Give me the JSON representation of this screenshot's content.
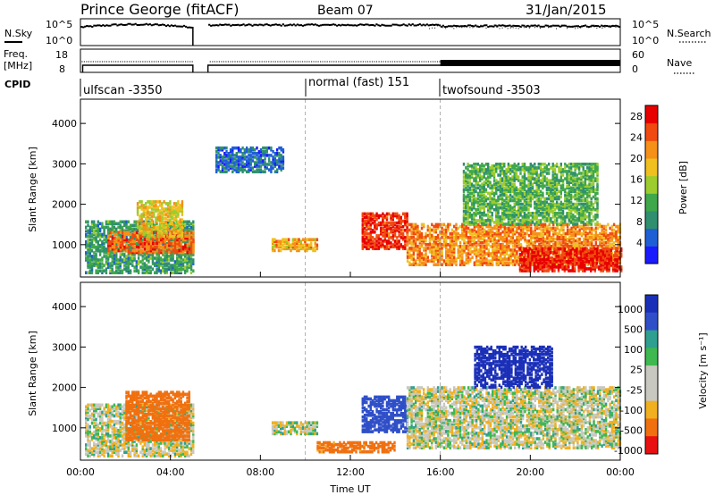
{
  "header": {
    "station": "Prince George (fitACF)",
    "beam": "Beam 07",
    "date": "31/Jan/2015"
  },
  "status_panels": {
    "nsky_label": "N.Sky",
    "nsearch_label": "N.Search",
    "freq_label": "Freq.",
    "mhz_label": "[MHz]",
    "nave_label": "Nave",
    "cpid_label": "CPID",
    "noise_ticks_left": [
      "10^5",
      "10^0"
    ],
    "noise_ticks_right": [
      "10^5",
      "10^0"
    ],
    "freq_ticks_left": [
      "18",
      "8"
    ],
    "nave_ticks_right": [
      "60",
      "0"
    ],
    "cpid_segments": [
      {
        "name": "ulfscan -3350",
        "start_hour": 0,
        "end_hour": 10
      },
      {
        "name": "normal (fast) 151",
        "start_hour": 10,
        "end_hour": 16
      },
      {
        "name": "twofsound -3503",
        "start_hour": 16,
        "end_hour": 24
      }
    ],
    "data_gap": [
      5.0,
      5.67
    ]
  },
  "chart_data": [
    {
      "type": "heatmap",
      "panel": "power",
      "ylabel": "Slant Range [km]",
      "ylim": [
        200,
        4600
      ],
      "yticks": [
        1000,
        2000,
        3000,
        4000
      ],
      "xlim": [
        0,
        24
      ],
      "colorbar": {
        "label": "Power [dB]",
        "ticks": [
          4,
          8,
          12,
          16,
          20,
          24,
          28
        ],
        "range": [
          0,
          30
        ]
      },
      "regions": [
        {
          "t0": 0.2,
          "t1": 5.0,
          "r0": 300,
          "r1": 1600,
          "level": 10
        },
        {
          "t0": 1.2,
          "t1": 5.0,
          "r0": 800,
          "r1": 1300,
          "level": 24
        },
        {
          "t0": 2.5,
          "t1": 4.5,
          "r0": 1200,
          "r1": 2100,
          "level": 18
        },
        {
          "t0": 8.5,
          "t1": 10.5,
          "r0": 850,
          "r1": 1150,
          "level": 20
        },
        {
          "t0": 12.5,
          "t1": 14.5,
          "r0": 900,
          "r1": 1800,
          "level": 27
        },
        {
          "t0": 14.5,
          "t1": 24.0,
          "r0": 500,
          "r1": 1500,
          "level": 22
        },
        {
          "t0": 19.5,
          "t1": 24.0,
          "r0": 350,
          "r1": 900,
          "level": 28
        },
        {
          "t0": 6.0,
          "t1": 9.0,
          "r0": 2800,
          "r1": 3400,
          "level": 6
        },
        {
          "t0": 17.0,
          "t1": 23.0,
          "r0": 1500,
          "r1": 3000,
          "level": 12
        }
      ]
    },
    {
      "type": "heatmap",
      "panel": "velocity",
      "ylabel": "Slant Range [km]",
      "xlabel": "Time UT",
      "ylim": [
        200,
        4600
      ],
      "yticks": [
        1000,
        2000,
        3000,
        4000
      ],
      "xlim": [
        0,
        24
      ],
      "xticks": [
        "00:00",
        "04:00",
        "08:00",
        "12:00",
        "16:00",
        "20:00",
        "00:00"
      ],
      "colorbar": {
        "label": "Velocity [m s⁻¹]",
        "ticks": [
          "1000",
          "500",
          "100",
          "25",
          "-25",
          "-100",
          "-500",
          "-1000"
        ]
      },
      "regions": [
        {
          "t0": 0.2,
          "t1": 5.0,
          "r0": 300,
          "r1": 1600,
          "level": 0
        },
        {
          "t0": 2.0,
          "t1": 4.8,
          "r0": 700,
          "r1": 1900,
          "level": -300
        },
        {
          "t0": 8.5,
          "t1": 10.5,
          "r0": 850,
          "r1": 1150,
          "level": 0
        },
        {
          "t0": 12.5,
          "t1": 14.5,
          "r0": 900,
          "r1": 1800,
          "level": 200
        },
        {
          "t0": 10.5,
          "t1": 14.0,
          "r0": 400,
          "r1": 650,
          "level": -150
        },
        {
          "t0": 14.5,
          "t1": 24.0,
          "r0": 500,
          "r1": 2000,
          "level": 0
        },
        {
          "t0": 17.5,
          "t1": 21.0,
          "r0": 2000,
          "r1": 3000,
          "level": 600
        }
      ]
    }
  ],
  "colors": {
    "power_scale": [
      "#1a1aff",
      "#1f5fd6",
      "#2f8f6f",
      "#3fa84a",
      "#9ccc2e",
      "#f0c020",
      "#f59018",
      "#f04a10",
      "#e80000"
    ],
    "velocity_scale": [
      "#1a2fb8",
      "#2f4fc8",
      "#2f9f8f",
      "#3fb84f",
      "#c8c8c0",
      "#c8c8c0",
      "#f0b020",
      "#f07010",
      "#e81010"
    ]
  }
}
